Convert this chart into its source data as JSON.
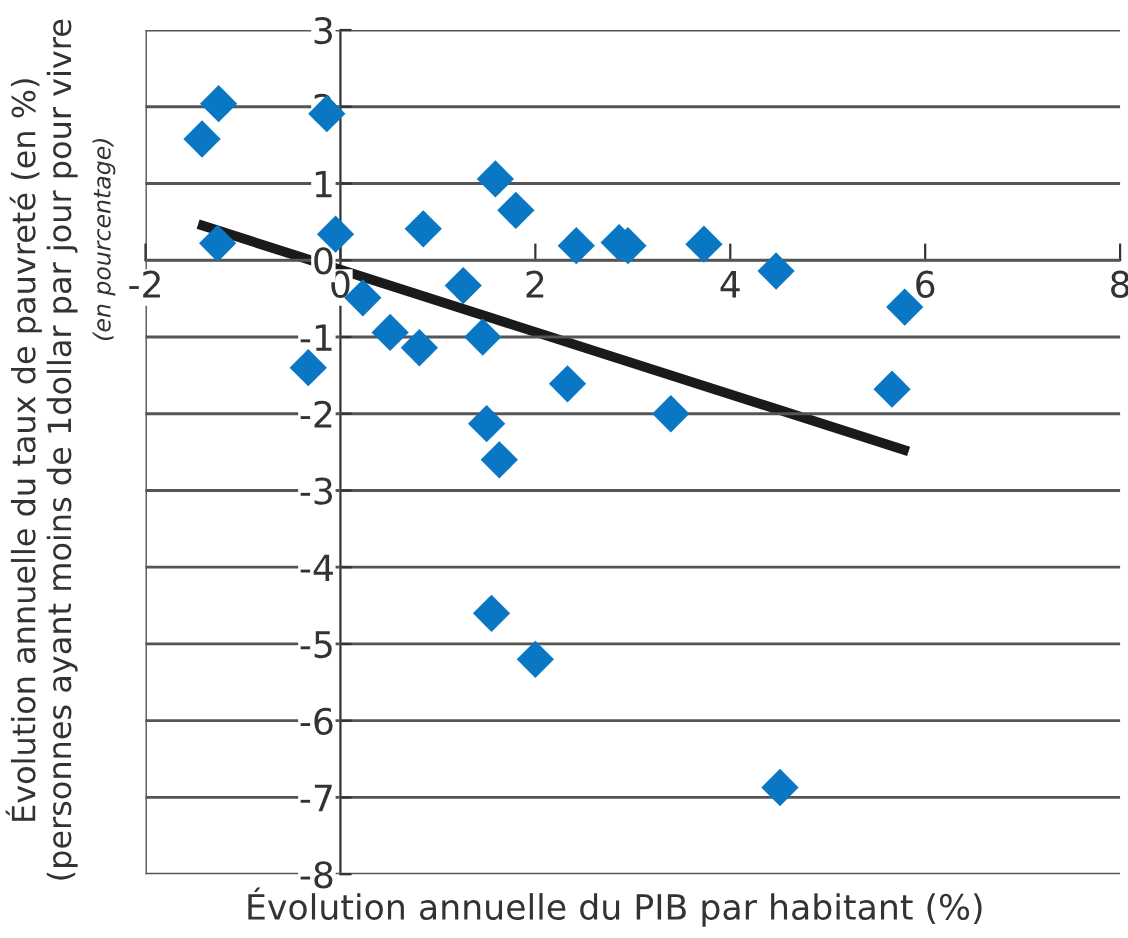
{
  "chart_data": {
    "type": "scatter",
    "xlabel": "Évolution annuelle du PIB par habitant (%)",
    "ylabel": "Évolution annuelle du taux de pauvreté (en %)\n(personnes ayant moins de 1dollar par jour pour vivre",
    "annotations": [
      "(en pourcentage)"
    ],
    "xlim": [
      -2,
      8
    ],
    "xticks": [
      -2,
      0,
      2,
      4,
      6,
      8
    ],
    "ylim": [
      -8,
      3
    ],
    "yticks": [
      -8,
      -7,
      -6,
      -5,
      -4,
      -3,
      -2,
      -1,
      0,
      1,
      2,
      3
    ],
    "grid": "y",
    "series": [
      {
        "type": "scatter",
        "marker": "diamond",
        "color": "#0a77c4",
        "x": [
          -1.42,
          -1.25,
          -1.26,
          -0.14,
          -0.05,
          0.23,
          -0.33,
          0.51,
          0.81,
          0.85,
          1.26,
          1.46,
          1.59,
          1.8,
          1.5,
          1.63,
          2.33,
          2.42,
          2.86,
          2.95,
          3.39,
          3.73,
          4.47,
          5.79,
          5.66,
          1.55,
          2.0,
          4.51
        ],
        "values": [
          1.58,
          2.04,
          0.22,
          1.91,
          0.34,
          -0.49,
          -1.4,
          -0.94,
          -1.14,
          0.41,
          -0.33,
          -1.0,
          1.06,
          0.65,
          -2.13,
          -2.6,
          -1.61,
          0.19,
          0.23,
          0.19,
          -2.0,
          0.21,
          -0.14,
          -0.61,
          -1.68,
          -4.6,
          -5.2,
          -6.87
        ]
      },
      {
        "type": "line",
        "marker": "none",
        "color": "#1a1a1a",
        "x": [
          -1.46,
          5.83
        ],
        "values": [
          0.47,
          -2.49
        ]
      }
    ]
  }
}
